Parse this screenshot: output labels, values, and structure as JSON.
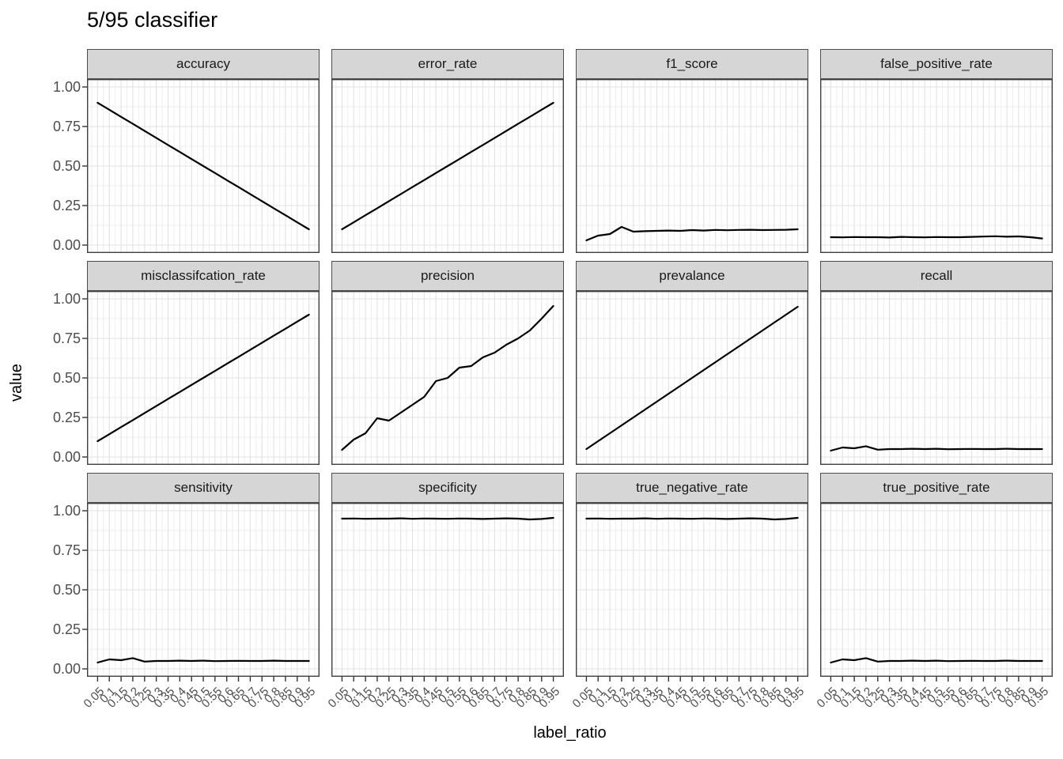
{
  "title": "5/95 classifier",
  "colors": {
    "line": "#000000",
    "strip_background": "#d6d6d6",
    "strip_border": "#4d4d4d",
    "panel_border": "#3f3f3f",
    "grid_major": "#e2e2e2",
    "grid_minor": "#eeeeee",
    "axis_text": "#4d4d4d",
    "tick": "#333333"
  },
  "chart_data": {
    "type": "line",
    "title": "5/95 classifier",
    "xlabel": "label_ratio",
    "ylabel": "value",
    "legend": "none",
    "grid": "major+minor",
    "facet_layout": {
      "rows": 3,
      "cols": 4
    },
    "xlim": [
      0.005,
      0.995
    ],
    "ylim": [
      -0.05,
      1.05
    ],
    "x": [
      0.05,
      0.1,
      0.15,
      0.2,
      0.25,
      0.3,
      0.35,
      0.4,
      0.45,
      0.5,
      0.55,
      0.6,
      0.65,
      0.7,
      0.75,
      0.8,
      0.85,
      0.9,
      0.95
    ],
    "x_tick_labels": [
      "0.05",
      "0.1",
      "0.15",
      "0.2",
      "0.25",
      "0.3",
      "0.35",
      "0.4",
      "0.45",
      "0.5",
      "0.55",
      "0.6",
      "0.65",
      "0.7",
      "0.75",
      "0.8",
      "0.85",
      "0.9",
      "0.95"
    ],
    "y_ticks": [
      0,
      0.25,
      0.5,
      0.75,
      1
    ],
    "y_tick_labels": [
      "0.00",
      "0.25",
      "0.50",
      "0.75",
      "1.00"
    ],
    "y_minor_ticks": [
      0.125,
      0.375,
      0.625,
      0.875
    ],
    "facets": [
      {
        "label": "accuracy",
        "values": [
          0.9,
          0.856,
          0.811,
          0.767,
          0.722,
          0.678,
          0.633,
          0.589,
          0.544,
          0.5,
          0.456,
          0.411,
          0.367,
          0.322,
          0.278,
          0.233,
          0.189,
          0.144,
          0.1
        ]
      },
      {
        "label": "error_rate",
        "values": [
          0.1,
          0.144,
          0.189,
          0.233,
          0.278,
          0.322,
          0.367,
          0.411,
          0.456,
          0.5,
          0.544,
          0.589,
          0.633,
          0.678,
          0.722,
          0.767,
          0.811,
          0.856,
          0.9
        ]
      },
      {
        "label": "f1_score",
        "values": [
          0.03,
          0.06,
          0.07,
          0.115,
          0.085,
          0.088,
          0.09,
          0.092,
          0.09,
          0.095,
          0.092,
          0.096,
          0.094,
          0.096,
          0.097,
          0.095,
          0.096,
          0.097,
          0.1
        ]
      },
      {
        "label": "false_positive_rate",
        "values": [
          0.05,
          0.049,
          0.051,
          0.05,
          0.05,
          0.048,
          0.052,
          0.05,
          0.049,
          0.051,
          0.05,
          0.05,
          0.052,
          0.054,
          0.056,
          0.053,
          0.055,
          0.05,
          0.042
        ]
      },
      {
        "label": "misclassifcation_rate",
        "values": [
          0.1,
          0.144,
          0.189,
          0.233,
          0.278,
          0.322,
          0.367,
          0.411,
          0.456,
          0.5,
          0.544,
          0.589,
          0.633,
          0.678,
          0.722,
          0.767,
          0.811,
          0.856,
          0.9
        ]
      },
      {
        "label": "precision",
        "values": [
          0.045,
          0.11,
          0.15,
          0.245,
          0.23,
          0.28,
          0.33,
          0.38,
          0.48,
          0.5,
          0.565,
          0.575,
          0.63,
          0.66,
          0.71,
          0.75,
          0.8,
          0.875,
          0.955
        ]
      },
      {
        "label": "prevalance",
        "values": [
          0.05,
          0.1,
          0.15,
          0.2,
          0.25,
          0.3,
          0.35,
          0.4,
          0.45,
          0.5,
          0.55,
          0.6,
          0.65,
          0.7,
          0.75,
          0.8,
          0.85,
          0.9,
          0.95
        ]
      },
      {
        "label": "recall",
        "values": [
          0.04,
          0.06,
          0.055,
          0.068,
          0.046,
          0.05,
          0.05,
          0.052,
          0.05,
          0.052,
          0.049,
          0.05,
          0.051,
          0.05,
          0.05,
          0.052,
          0.05,
          0.05,
          0.05
        ]
      },
      {
        "label": "sensitivity",
        "values": [
          0.04,
          0.06,
          0.055,
          0.068,
          0.046,
          0.05,
          0.05,
          0.052,
          0.05,
          0.052,
          0.049,
          0.05,
          0.051,
          0.05,
          0.05,
          0.052,
          0.05,
          0.05,
          0.05
        ]
      },
      {
        "label": "specificity",
        "values": [
          0.95,
          0.951,
          0.949,
          0.95,
          0.95,
          0.952,
          0.949,
          0.951,
          0.95,
          0.949,
          0.951,
          0.95,
          0.948,
          0.95,
          0.952,
          0.95,
          0.945,
          0.948,
          0.955
        ]
      },
      {
        "label": "true_negative_rate",
        "values": [
          0.95,
          0.951,
          0.949,
          0.95,
          0.95,
          0.952,
          0.949,
          0.951,
          0.95,
          0.949,
          0.951,
          0.95,
          0.948,
          0.95,
          0.952,
          0.95,
          0.945,
          0.948,
          0.955
        ]
      },
      {
        "label": "true_positive_rate",
        "values": [
          0.04,
          0.06,
          0.055,
          0.068,
          0.046,
          0.05,
          0.05,
          0.052,
          0.05,
          0.052,
          0.049,
          0.05,
          0.051,
          0.05,
          0.05,
          0.052,
          0.05,
          0.05,
          0.05
        ]
      }
    ]
  }
}
